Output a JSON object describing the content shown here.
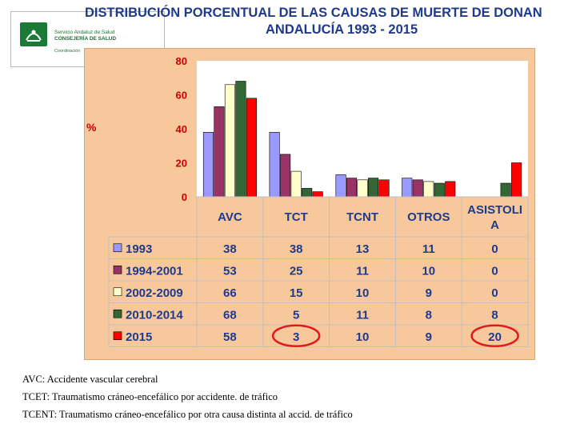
{
  "header": {
    "title_line1": "DISTRIBUCIÓN PORCENTUAL DE LAS CAUSAS DE MUERTE DE DONAN",
    "title_line2": "ANDALUCÍA 1993 - 2015"
  },
  "logo": {
    "line1": "Servicio Andaluz de Salud",
    "line2": "CONSEJERÍA DE SALUD",
    "line3": "Coordinación",
    "icon": "junta-de-andalucia-logo"
  },
  "chart_data": {
    "type": "bar",
    "ylabel": "%",
    "ylim": [
      0,
      80
    ],
    "yticks": [
      0,
      20,
      40,
      60,
      80
    ],
    "categories": [
      "AVC",
      "TCT",
      "TCNT",
      "OTROS",
      "ASISTOLI A"
    ],
    "series": [
      {
        "name": "1993",
        "color": "#9999ff",
        "values": [
          38,
          38,
          13,
          11,
          0
        ]
      },
      {
        "name": "1994-2001",
        "color": "#993366",
        "values": [
          53,
          25,
          11,
          10,
          0
        ]
      },
      {
        "name": "2002-2009",
        "color": "#ffffcc",
        "values": [
          66,
          15,
          10,
          9,
          0
        ]
      },
      {
        "name": "2010-2014",
        "color": "#336633",
        "values": [
          68,
          5,
          11,
          8,
          8
        ]
      },
      {
        "name": "2015",
        "color": "#ff0000",
        "values": [
          58,
          3,
          10,
          9,
          20
        ]
      }
    ],
    "legend": "table-left",
    "highlighted_cells": [
      {
        "series": "2015",
        "category": "TCT"
      },
      {
        "series": "2015",
        "category": "ASISTOLI A"
      }
    ],
    "highlight_color": "#e01a1a"
  },
  "footnotes": [
    "AVC: Accidente vascular cerebral",
    "TCET: Traumatismo cráneo-encefálico por accidente. de tráfico",
    "TCENT: Traumatismo cráneo-encefálico por otra causa distinta al  accid. de tráfico"
  ],
  "colors": {
    "title": "#1f3a8c",
    "panel_bg": "#f7c89c",
    "plot_bg": "#ffffff",
    "axis_label": "#cc0000",
    "table_text": "#1f3a8c"
  }
}
